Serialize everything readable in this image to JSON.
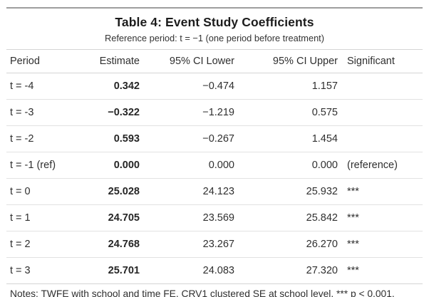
{
  "chart_data": {
    "type": "table",
    "title": "Table 4: Event Study Coefficients",
    "subtitle": "Reference period: t = −1 (one period before treatment)",
    "columns": [
      "Period",
      "Estimate",
      "95% CI Lower",
      "95% CI Upper",
      "Significant"
    ],
    "rows": [
      [
        "t = -4",
        "0.342",
        "−0.474",
        "1.157",
        ""
      ],
      [
        "t = -3",
        "−0.322",
        "−1.219",
        "0.575",
        ""
      ],
      [
        "t = -2",
        "0.593",
        "−0.267",
        "1.454",
        ""
      ],
      [
        "t = -1 (ref)",
        "0.000",
        "0.000",
        "0.000",
        "(reference)"
      ],
      [
        "t = 0",
        "25.028",
        "24.123",
        "25.932",
        "***"
      ],
      [
        "t = 1",
        "24.705",
        "23.569",
        "25.842",
        "***"
      ],
      [
        "t = 2",
        "24.768",
        "23.267",
        "26.270",
        "***"
      ],
      [
        "t = 3",
        "25.701",
        "24.083",
        "27.320",
        "***"
      ]
    ],
    "notes": "Notes: TWFE with school and time FE. CRV1 clustered SE at school level. *** p < 0.001.",
    "layout_hints": {
      "estimate_column_bold": true,
      "numeric_columns_right_aligned": true,
      "heavy_rules": "top and bottom of table",
      "light_rules": "header and footer separators, row dividers"
    }
  },
  "colors": {
    "background": "#ffffff",
    "text": "#2f2f2f",
    "title_text": "#1c1c1c",
    "heavy_rule": "#9e9e9e",
    "light_rule": "#d5d5d5",
    "row_rule": "#e2e2e2"
  }
}
